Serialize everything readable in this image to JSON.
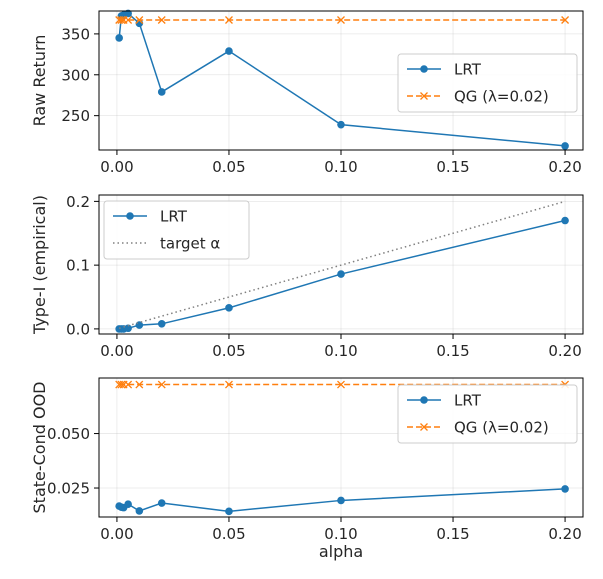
{
  "colors": {
    "lrt": "#1f77b4",
    "qg": "#ff7f0e",
    "target": "#808080"
  },
  "chart_data": [
    {
      "type": "line",
      "ylabel": "Raw Return",
      "xlabel": "",
      "xlim": [
        -0.008,
        0.208
      ],
      "ylim": [
        208,
        378
      ],
      "xticks": [
        0.0,
        0.05,
        0.1,
        0.15,
        0.2
      ],
      "xtick_labels": [
        "0.00",
        "0.05",
        "0.10",
        "0.15",
        "0.20"
      ],
      "yticks": [
        250,
        300,
        350
      ],
      "ytick_labels": [
        "250",
        "300",
        "350"
      ],
      "legend_position": "center-right",
      "series": [
        {
          "name": "LRT",
          "style": "solid",
          "marker": "circle",
          "color_key": "lrt",
          "x": [
            0.001,
            0.002,
            0.003,
            0.005,
            0.01,
            0.02,
            0.05,
            0.1,
            0.2
          ],
          "y": [
            345,
            372,
            373,
            375,
            363,
            279,
            329,
            239,
            213
          ]
        },
        {
          "name": "QG (λ=0.02)",
          "style": "dashed",
          "marker": "x",
          "color_key": "qg",
          "x": [
            0.001,
            0.002,
            0.003,
            0.005,
            0.01,
            0.02,
            0.05,
            0.1,
            0.2
          ],
          "y": [
            367,
            367,
            367,
            367,
            367,
            367,
            367,
            367,
            367
          ]
        }
      ]
    },
    {
      "type": "line",
      "ylabel": "Type-I (empirical)",
      "xlabel": "",
      "xlim": [
        -0.008,
        0.208
      ],
      "ylim": [
        -0.008,
        0.21
      ],
      "xticks": [
        0.0,
        0.05,
        0.1,
        0.15,
        0.2
      ],
      "xtick_labels": [
        "0.00",
        "0.05",
        "0.10",
        "0.15",
        "0.20"
      ],
      "yticks": [
        0.0,
        0.1,
        0.2
      ],
      "ytick_labels": [
        "0.0",
        "0.1",
        "0.2"
      ],
      "legend_position": "top-left",
      "series": [
        {
          "name": "LRT",
          "style": "solid",
          "marker": "circle",
          "color_key": "lrt",
          "x": [
            0.001,
            0.002,
            0.003,
            0.005,
            0.01,
            0.02,
            0.05,
            0.1,
            0.2
          ],
          "y": [
            0.0,
            0.0,
            0.0,
            0.001,
            0.006,
            0.008,
            0.033,
            0.086,
            0.17
          ]
        },
        {
          "name": "target α",
          "style": "dotted",
          "marker": "none",
          "color_key": "target",
          "x": [
            0.001,
            0.2
          ],
          "y": [
            0.001,
            0.2
          ]
        }
      ]
    },
    {
      "type": "line",
      "ylabel": "State-Cond OOD",
      "xlabel": "alpha",
      "xlim": [
        -0.008,
        0.208
      ],
      "ylim": [
        0.0117,
        0.0755
      ],
      "xticks": [
        0.0,
        0.05,
        0.1,
        0.15,
        0.2
      ],
      "xtick_labels": [
        "0.00",
        "0.05",
        "0.10",
        "0.15",
        "0.20"
      ],
      "yticks": [
        0.025,
        0.05
      ],
      "ytick_labels": [
        "0.025",
        "0.050"
      ],
      "legend_position": "top-right",
      "series": [
        {
          "name": "LRT",
          "style": "solid",
          "marker": "circle",
          "color_key": "lrt",
          "x": [
            0.001,
            0.002,
            0.003,
            0.005,
            0.01,
            0.02,
            0.05,
            0.1,
            0.2
          ],
          "y": [
            0.0167,
            0.0162,
            0.016,
            0.0176,
            0.0145,
            0.0181,
            0.0143,
            0.0193,
            0.0246
          ]
        },
        {
          "name": "QG (λ=0.02)",
          "style": "dashed",
          "marker": "x",
          "color_key": "qg",
          "x": [
            0.001,
            0.002,
            0.003,
            0.005,
            0.01,
            0.02,
            0.05,
            0.1,
            0.2
          ],
          "y": [
            0.0725,
            0.0725,
            0.0725,
            0.0725,
            0.0725,
            0.0725,
            0.0725,
            0.0725,
            0.0725
          ]
        }
      ]
    }
  ]
}
